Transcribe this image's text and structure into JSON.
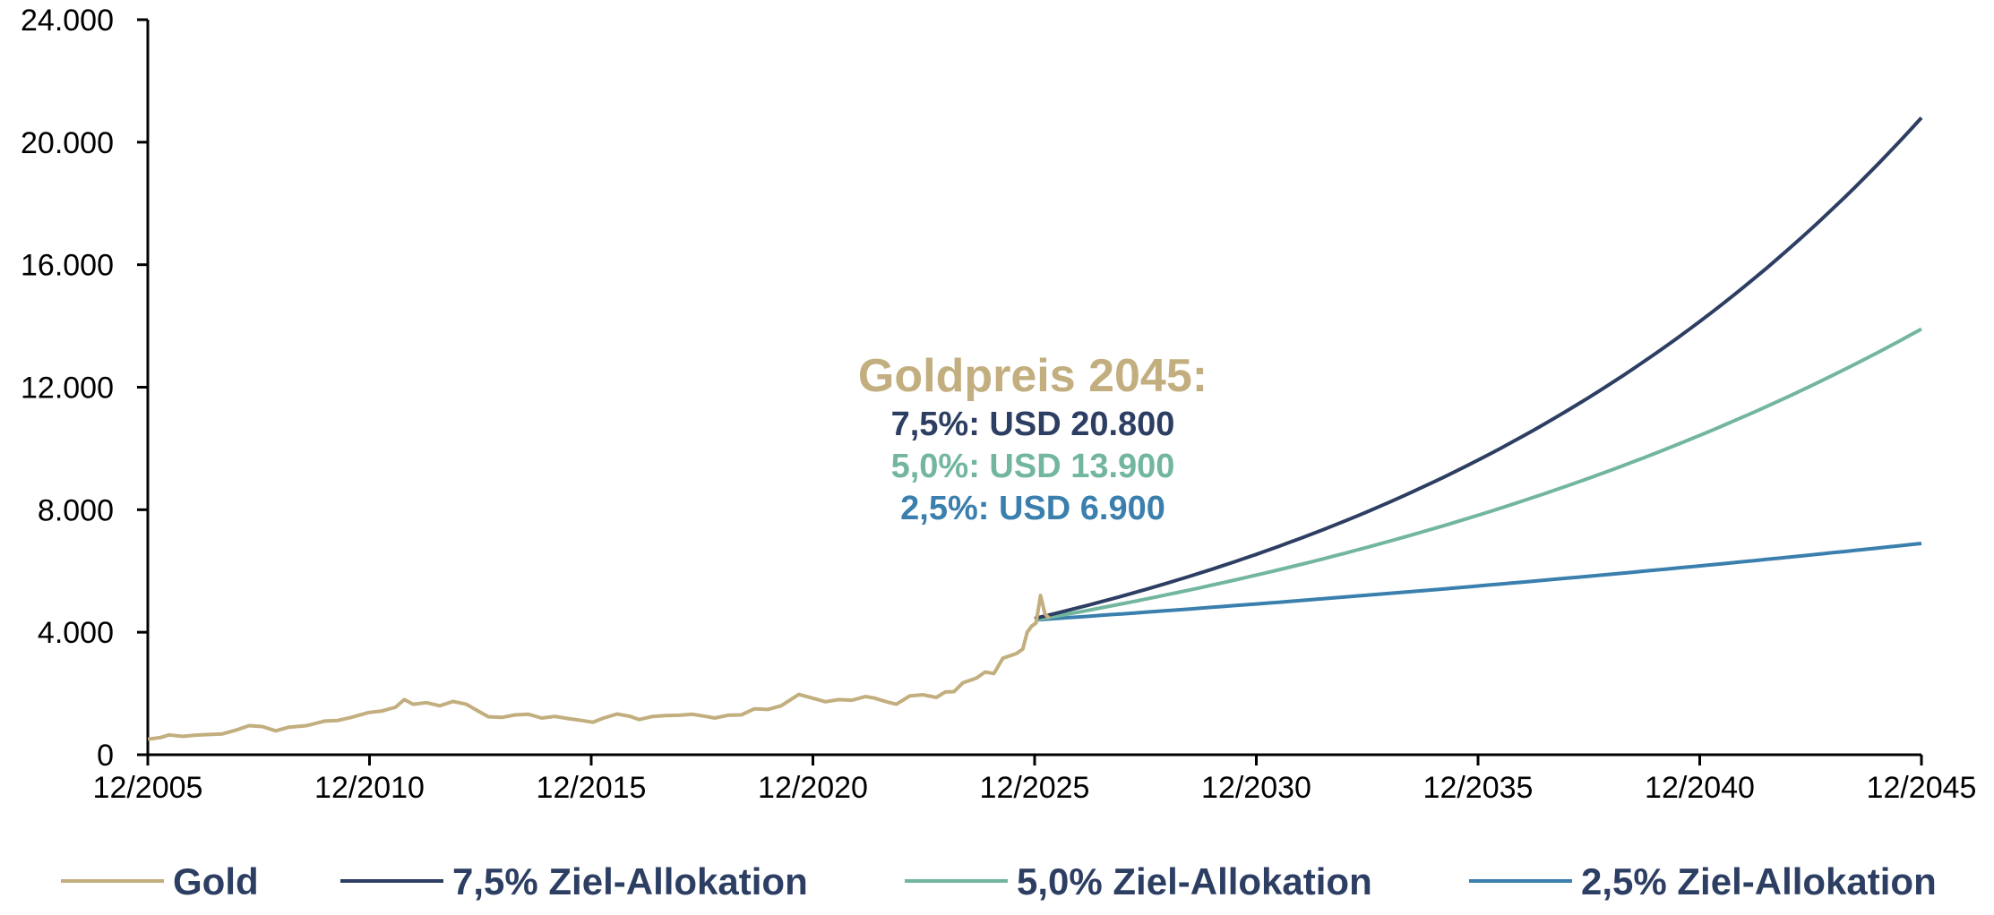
{
  "chart_data": {
    "type": "line",
    "title": "",
    "xlabel": "",
    "ylabel": "",
    "xlim": [
      2005.917,
      2045.917
    ],
    "ylim": [
      0,
      24000
    ],
    "y_ticks": [
      0,
      4000,
      8000,
      12000,
      16000,
      20000,
      24000
    ],
    "y_tick_labels": [
      "0",
      "4.000",
      "8.000",
      "12.000",
      "16.000",
      "20.000",
      "24.000"
    ],
    "x_ticks": [
      2005.917,
      2010.917,
      2015.917,
      2020.917,
      2025.917,
      2030.917,
      2035.917,
      2040.917,
      2045.917
    ],
    "x_tick_labels": [
      "12/2005",
      "12/2010",
      "12/2015",
      "12/2020",
      "12/2025",
      "12/2030",
      "12/2035",
      "12/2040",
      "12/2045"
    ],
    "grid": false,
    "legend_position": "bottom",
    "series": [
      {
        "name": "Gold",
        "color": "#c2ae7e",
        "points": [
          [
            2005.92,
            510
          ],
          [
            2006.2,
            560
          ],
          [
            2006.4,
            650
          ],
          [
            2006.7,
            600
          ],
          [
            2007.0,
            640
          ],
          [
            2007.3,
            660
          ],
          [
            2007.6,
            680
          ],
          [
            2007.9,
            800
          ],
          [
            2008.2,
            950
          ],
          [
            2008.5,
            920
          ],
          [
            2008.8,
            780
          ],
          [
            2009.1,
            900
          ],
          [
            2009.5,
            950
          ],
          [
            2009.9,
            1100
          ],
          [
            2010.2,
            1120
          ],
          [
            2010.5,
            1220
          ],
          [
            2010.9,
            1380
          ],
          [
            2011.2,
            1430
          ],
          [
            2011.5,
            1550
          ],
          [
            2011.7,
            1800
          ],
          [
            2011.9,
            1650
          ],
          [
            2012.2,
            1700
          ],
          [
            2012.5,
            1600
          ],
          [
            2012.8,
            1740
          ],
          [
            2013.1,
            1650
          ],
          [
            2013.4,
            1400
          ],
          [
            2013.6,
            1240
          ],
          [
            2013.9,
            1220
          ],
          [
            2014.2,
            1300
          ],
          [
            2014.5,
            1320
          ],
          [
            2014.8,
            1200
          ],
          [
            2015.1,
            1250
          ],
          [
            2015.4,
            1180
          ],
          [
            2015.7,
            1120
          ],
          [
            2015.95,
            1060
          ],
          [
            2016.2,
            1200
          ],
          [
            2016.5,
            1330
          ],
          [
            2016.8,
            1250
          ],
          [
            2017.0,
            1150
          ],
          [
            2017.3,
            1250
          ],
          [
            2017.6,
            1280
          ],
          [
            2017.9,
            1290
          ],
          [
            2018.2,
            1320
          ],
          [
            2018.5,
            1250
          ],
          [
            2018.7,
            1200
          ],
          [
            2019.0,
            1290
          ],
          [
            2019.3,
            1300
          ],
          [
            2019.6,
            1500
          ],
          [
            2019.9,
            1480
          ],
          [
            2020.2,
            1600
          ],
          [
            2020.6,
            1970
          ],
          [
            2020.9,
            1850
          ],
          [
            2021.2,
            1730
          ],
          [
            2021.5,
            1800
          ],
          [
            2021.8,
            1780
          ],
          [
            2022.1,
            1900
          ],
          [
            2022.3,
            1850
          ],
          [
            2022.6,
            1720
          ],
          [
            2022.8,
            1650
          ],
          [
            2023.1,
            1920
          ],
          [
            2023.4,
            1960
          ],
          [
            2023.7,
            1870
          ],
          [
            2023.9,
            2050
          ],
          [
            2024.1,
            2060
          ],
          [
            2024.3,
            2350
          ],
          [
            2024.6,
            2500
          ],
          [
            2024.8,
            2700
          ],
          [
            2025.0,
            2650
          ],
          [
            2025.2,
            3150
          ],
          [
            2025.5,
            3300
          ],
          [
            2025.65,
            3450
          ],
          [
            2025.75,
            4000
          ],
          [
            2025.85,
            4200
          ],
          [
            2025.95,
            4300
          ],
          [
            2026.05,
            5200
          ],
          [
            2026.15,
            4600
          ],
          [
            2026.25,
            4450
          ]
        ]
      },
      {
        "name": "7,5% Ziel-Allokation",
        "color": "#2d3e63",
        "start": [
          2025.917,
          4450
        ],
        "end": [
          2045.917,
          20800
        ]
      },
      {
        "name": "5,0% Ziel-Allokation",
        "color": "#72b69f",
        "start": [
          2025.917,
          4400
        ],
        "end": [
          2045.917,
          13900
        ]
      },
      {
        "name": "2,5% Ziel-Allokation",
        "color": "#3a7fad",
        "start": [
          2025.917,
          4400
        ],
        "end": [
          2045.917,
          6900
        ]
      }
    ],
    "annotation": {
      "heading": "Goldpreis 2045:",
      "heading_color": "#c2ae7e",
      "lines": [
        {
          "text": "7,5%: USD 20.800",
          "color": "#2d3e63"
        },
        {
          "text": "5,0%: USD 13.900",
          "color": "#72b69f"
        },
        {
          "text": "2,5%: USD 6.900",
          "color": "#3a7fad"
        }
      ]
    }
  }
}
